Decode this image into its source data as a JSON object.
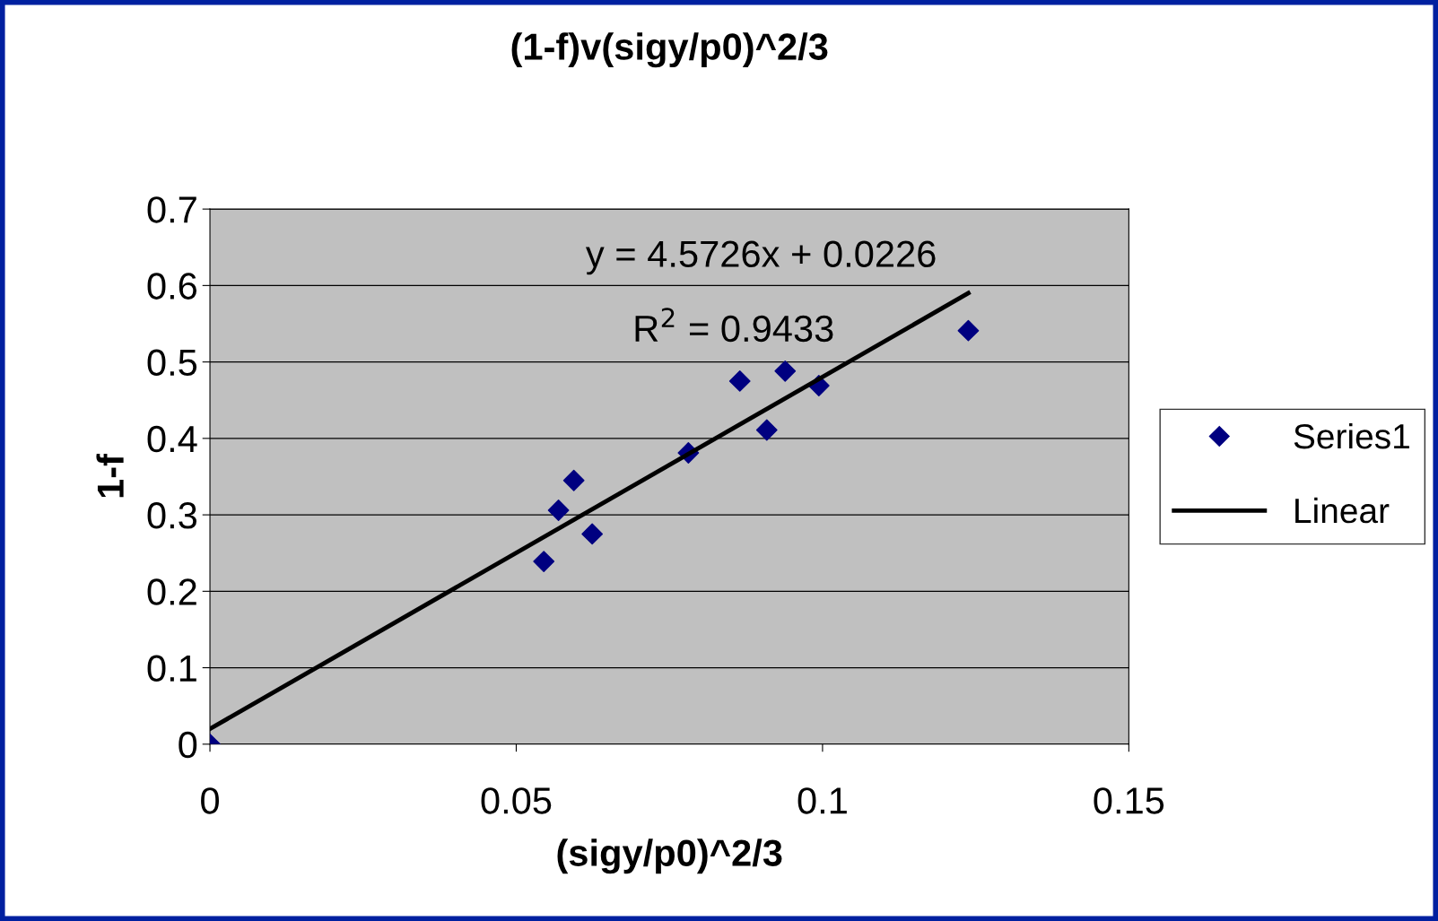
{
  "chart_data": {
    "type": "scatter",
    "title": "(1-f)v(sigy/p0)^2/3",
    "xlabel": "(sigy/p0)^2/3",
    "ylabel": "1-f",
    "x": [
      0,
      0.0545,
      0.0569,
      0.0594,
      0.0624,
      0.0781,
      0.0865,
      0.0909,
      0.0939,
      0.0994,
      0.1238
    ],
    "series": [
      {
        "name": "Series1",
        "color": "#000080",
        "marker": "diamond",
        "values": [
          0,
          0.239,
          0.306,
          0.345,
          0.275,
          0.381,
          0.475,
          0.411,
          0.488,
          0.469,
          0.541
        ]
      },
      {
        "name": "Linear",
        "type": "line",
        "color": "#000000",
        "marker": "none",
        "line_style": "solid",
        "x": [
          0,
          0.1238
        ],
        "values": [
          0.02,
          0.59
        ]
      }
    ],
    "annotations": [
      "y = 4.5726x + 0.0226",
      "R$^{2}$ = 0.9433"
    ],
    "xlim": [
      0,
      0.15
    ],
    "xticks": [
      0,
      0.05,
      0.1,
      0.15
    ],
    "ylim": [
      0,
      0.7
    ],
    "yticks": [
      0,
      0.1,
      0.2,
      0.3,
      0.4,
      0.5,
      0.6,
      0.7
    ],
    "grid": "y",
    "legend": "right"
  }
}
